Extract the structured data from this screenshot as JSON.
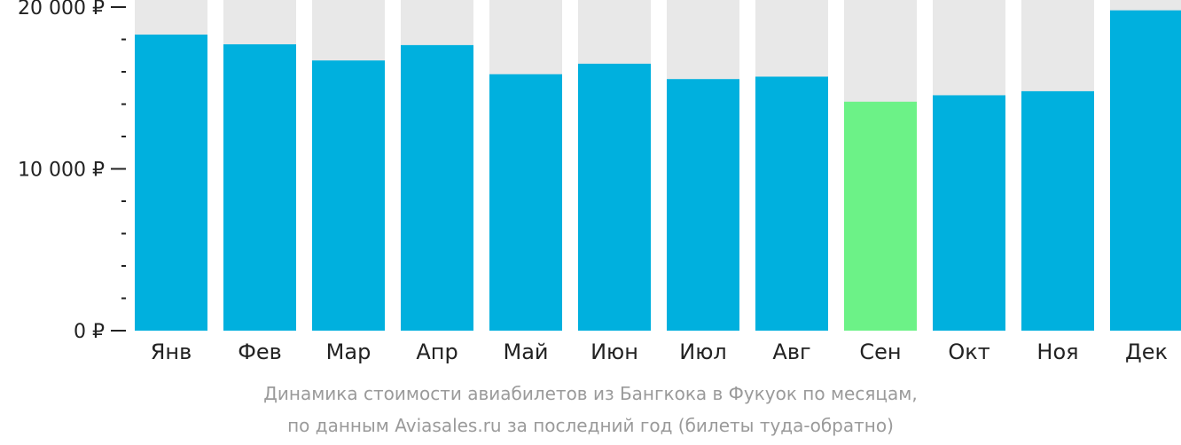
{
  "chart_data": {
    "type": "bar",
    "categories": [
      "Янв",
      "Фев",
      "Мар",
      "Апр",
      "Май",
      "Июн",
      "Июл",
      "Авг",
      "Сен",
      "Окт",
      "Ноя",
      "Дек"
    ],
    "values": [
      18300,
      17700,
      16700,
      17650,
      15850,
      16500,
      15550,
      15700,
      14150,
      14550,
      14800,
      19800
    ],
    "highlight_category": "Сен",
    "ylim": [
      0,
      20000
    ],
    "yticks": [
      {
        "value": 20000,
        "label": "20 000 ₽"
      },
      {
        "value": 10000,
        "label": "10 000 ₽"
      },
      {
        "value": 0,
        "label": "0 ₽"
      }
    ],
    "minor_tick_step": 2000,
    "caption_line1": "Динамика стоимости авиабилетов из Бангкока в Фукуок по месяцам,",
    "caption_line2": "по данным Aviasales.ru за последний год (билеты туда-обратно)",
    "colors": {
      "bar": "#00b0de",
      "highlight": "#6cf287",
      "background_bar": "#e8e8e8",
      "axis": "#222222",
      "caption": "#9a9a9a"
    }
  }
}
